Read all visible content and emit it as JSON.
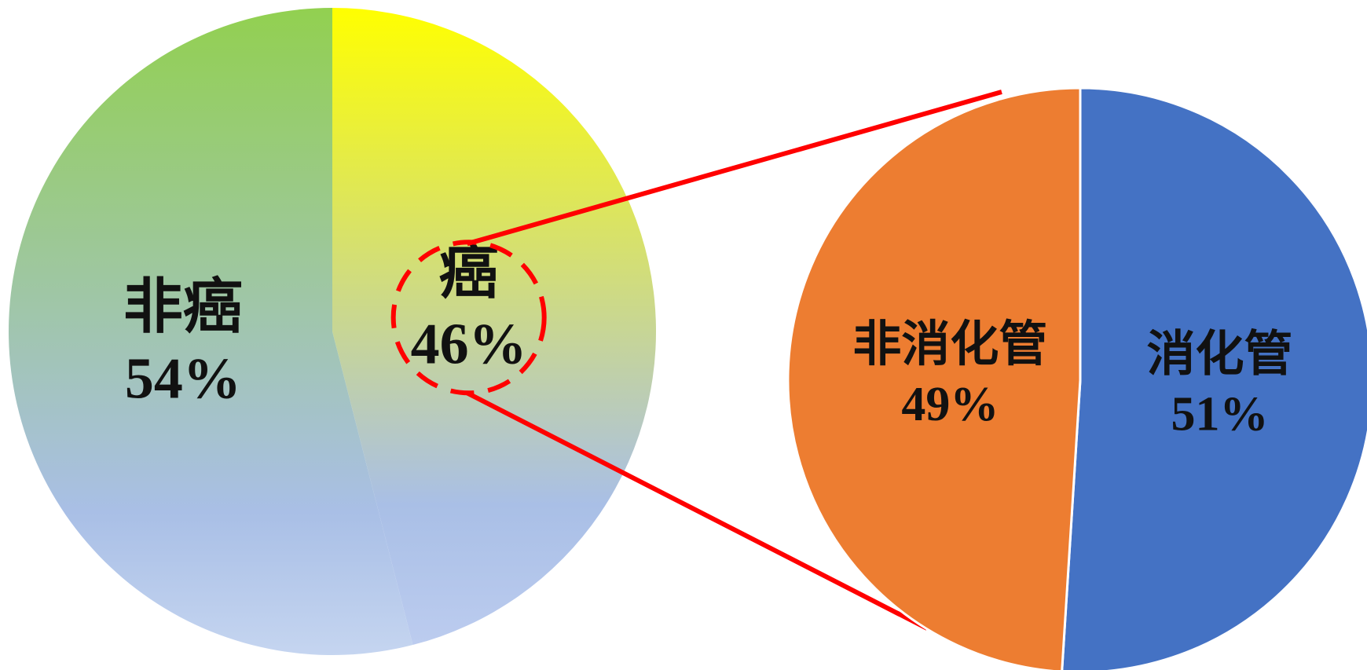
{
  "chart_data": [
    {
      "type": "pie",
      "title": "",
      "categories": [
        "癌",
        "非癌"
      ],
      "values": [
        46,
        54
      ],
      "labels": [
        "46%",
        "54%"
      ],
      "colors": {
        "癌_top": "#ffff00",
        "癌_bottom": "#bcccef",
        "非癌_top": "#92d050",
        "非癌_bottom": "#c5d5f0",
        "highlight_ring": "#ff0000"
      },
      "start_angle_deg": 0,
      "direction": "clockwise",
      "highlighted_slice": "癌"
    },
    {
      "type": "pie",
      "title": "",
      "categories": [
        "消化管",
        "非消化管"
      ],
      "values": [
        51,
        49
      ],
      "labels": [
        "51%",
        "49%"
      ],
      "colors": {
        "消化管": "#4472c4",
        "非消化管": "#ed7d31",
        "connector": "#ff0000"
      },
      "start_angle_deg": 0,
      "direction": "clockwise",
      "breakdown_of": "癌"
    }
  ]
}
